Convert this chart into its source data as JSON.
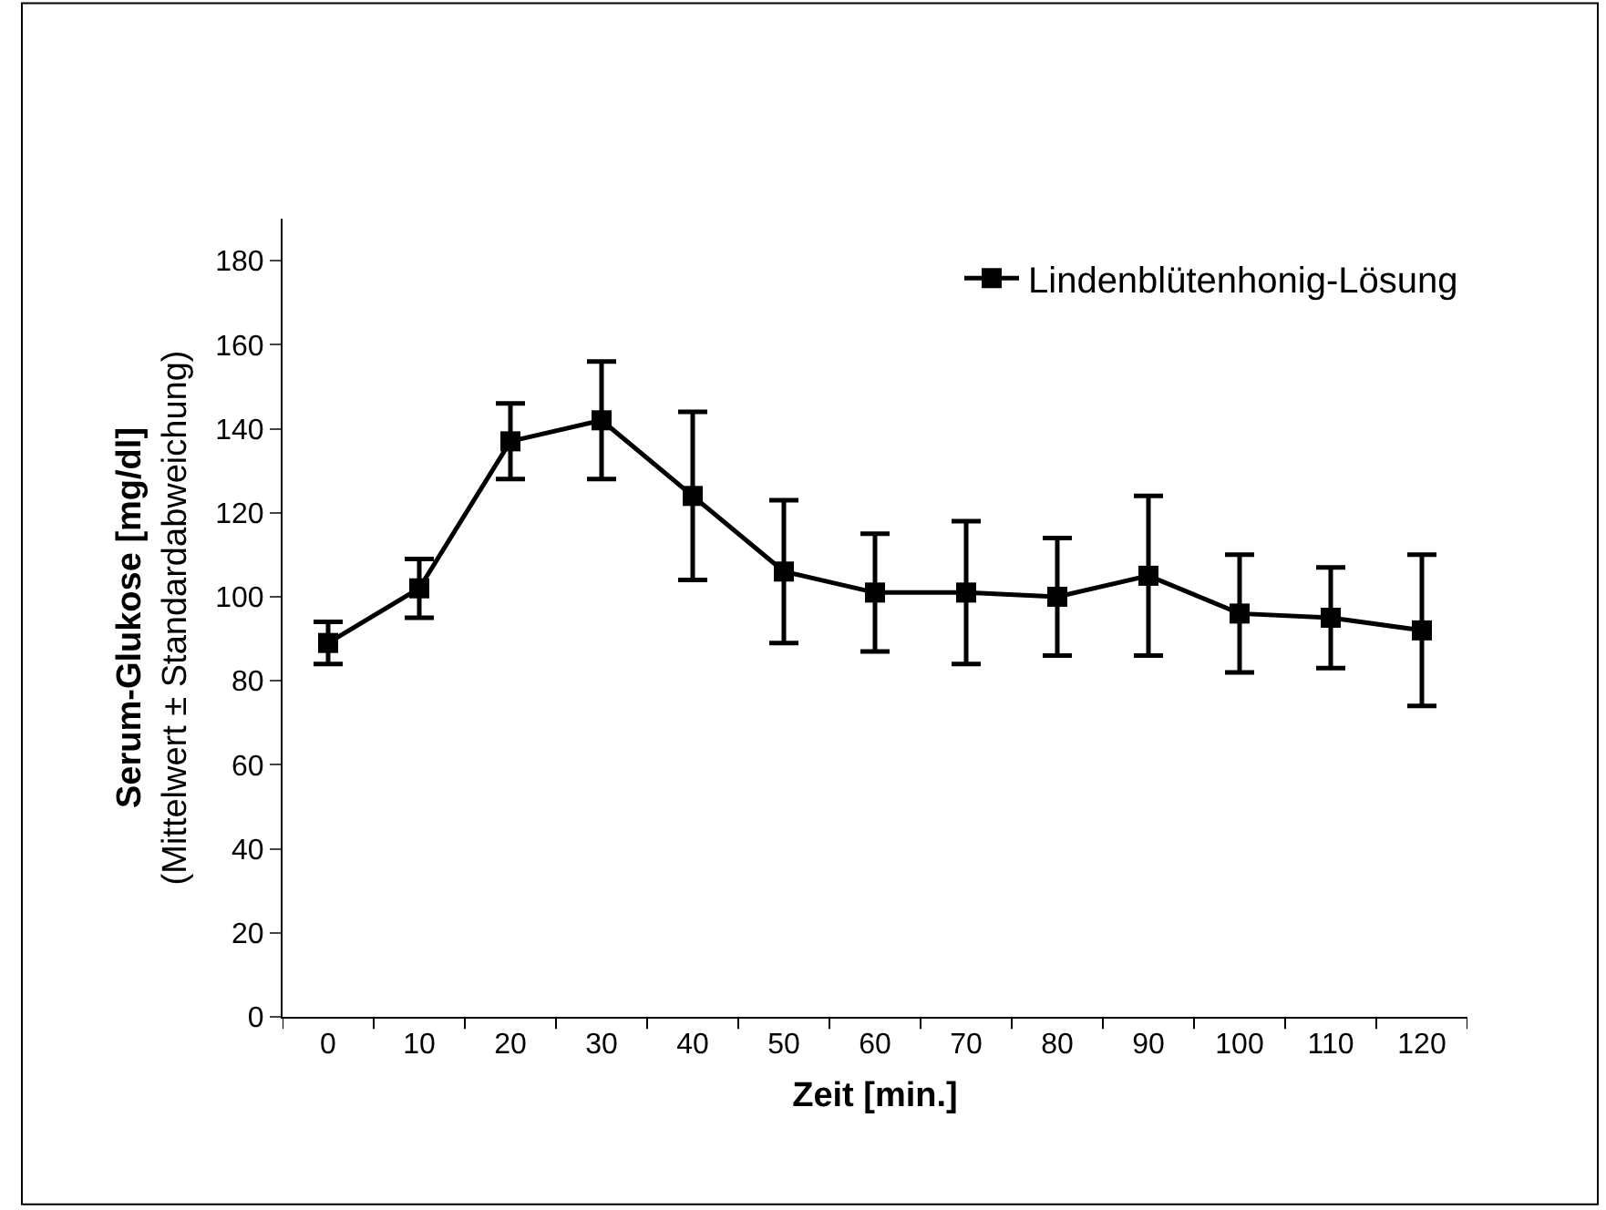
{
  "chart_data": {
    "type": "line",
    "xlabel": "Zeit [min.]",
    "ylabel": "Serum-Glukose [mg/dl]\n(Mittelwert ± Standardabweichung)",
    "categories": [
      "0",
      "10",
      "20",
      "30",
      "40",
      "50",
      "60",
      "70",
      "80",
      "90",
      "100",
      "110",
      "120"
    ],
    "series": [
      {
        "name": "Lindenblütenhonig-Lösung",
        "color": "#000000",
        "values": [
          89,
          102,
          137,
          142,
          124,
          106,
          101,
          101,
          100,
          105,
          96,
          95,
          92
        ],
        "errors": [
          5,
          7,
          9,
          14,
          20,
          17,
          14,
          17,
          14,
          19,
          14,
          12,
          18
        ]
      }
    ],
    "ylim": [
      0,
      190
    ],
    "yticks": [
      0,
      20,
      40,
      60,
      80,
      100,
      120,
      140,
      160,
      180
    ],
    "legend": "top right",
    "marker": "square",
    "line_style": "solid"
  }
}
